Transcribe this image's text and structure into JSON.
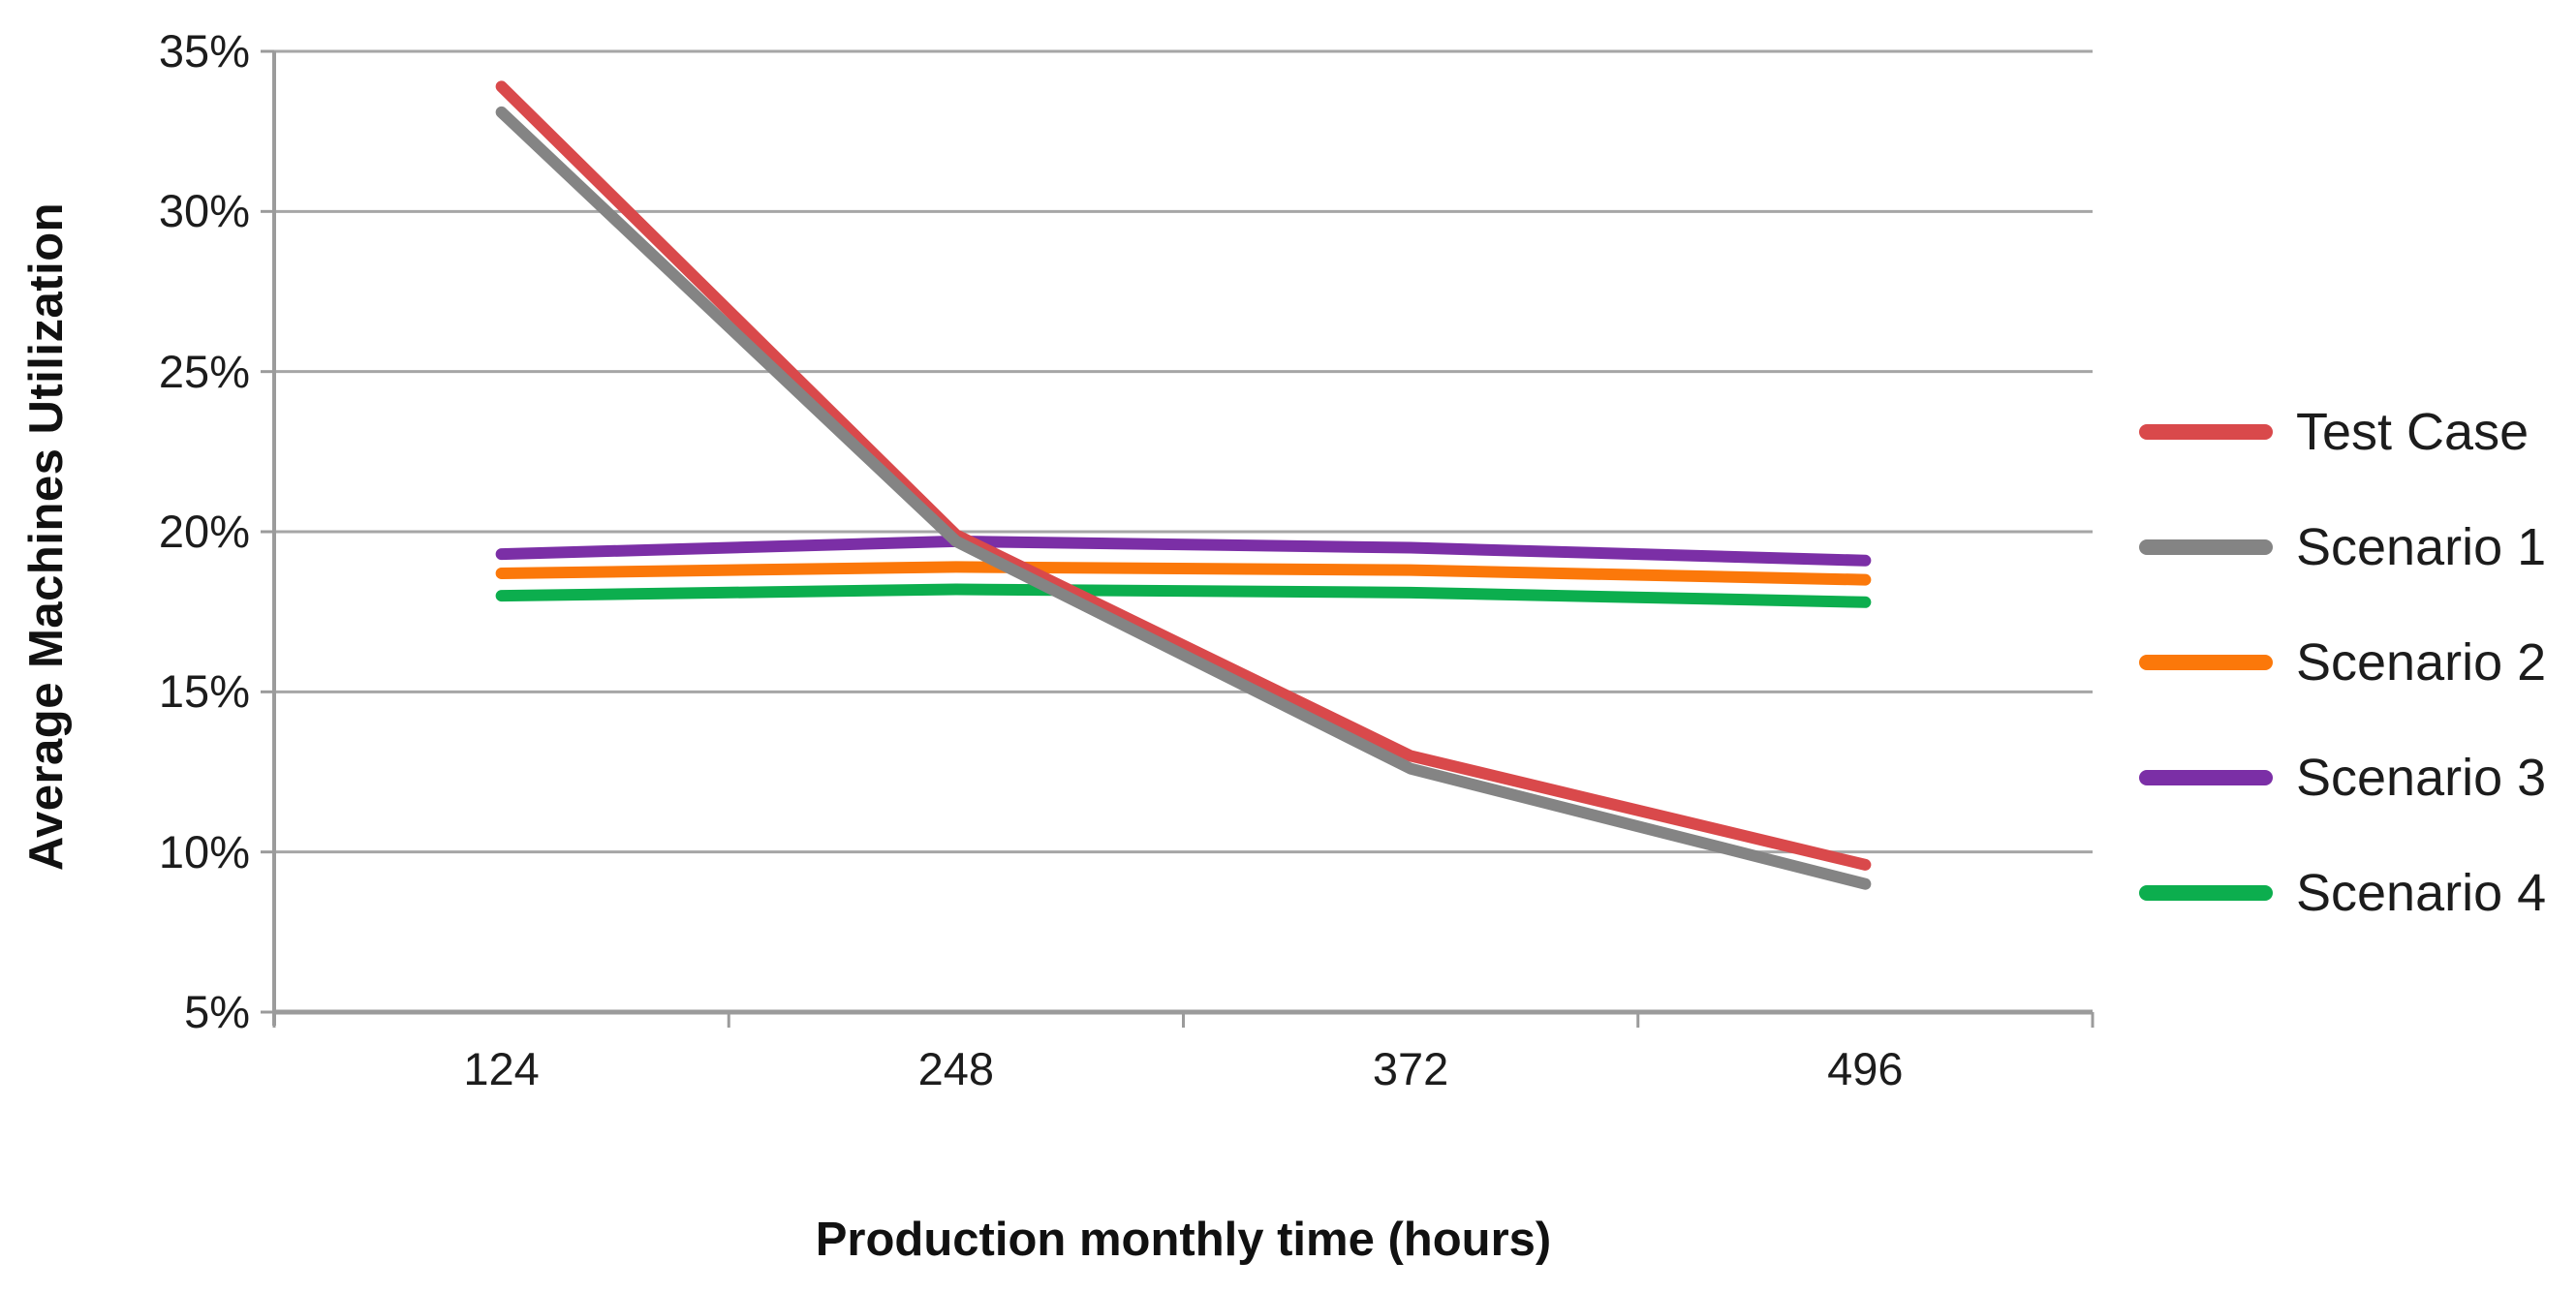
{
  "figure": {
    "background": "#ffffff",
    "text_color": "#1c1c1c",
    "gridline_color": "#a6a6a6",
    "axis_color": "#9b9b9b"
  },
  "chart_data": {
    "type": "line",
    "title": "",
    "xlabel": "Production monthly time (hours)",
    "ylabel": "Average Machines Utilization",
    "categories": [
      "124",
      "248",
      "372",
      "496"
    ],
    "series": [
      {
        "name": "Test Case",
        "color": "#d9494b",
        "values": [
          33.9,
          19.9,
          13.0,
          9.6
        ]
      },
      {
        "name": "Scenario 1",
        "color": "#848484",
        "values": [
          33.1,
          19.7,
          12.6,
          9.0
        ]
      },
      {
        "name": "Scenario 2",
        "color": "#fb780a",
        "values": [
          18.7,
          18.9,
          18.8,
          18.5
        ]
      },
      {
        "name": "Scenario 3",
        "color": "#7b2fa6",
        "values": [
          19.3,
          19.7,
          19.5,
          19.1
        ]
      },
      {
        "name": "Scenario 4",
        "color": "#0cae4e",
        "values": [
          18.0,
          18.2,
          18.1,
          17.8
        ]
      }
    ],
    "ylim": [
      5,
      35
    ],
    "yticks": [
      5,
      10,
      15,
      20,
      25,
      30,
      35
    ],
    "ytick_suffix": "%",
    "grid": "horizontal",
    "legend_position": "right",
    "legend_labels": [
      "Test Case",
      "Scenario 1",
      "Scenario 2",
      "Scenario 3",
      "Scenario 4"
    ]
  }
}
